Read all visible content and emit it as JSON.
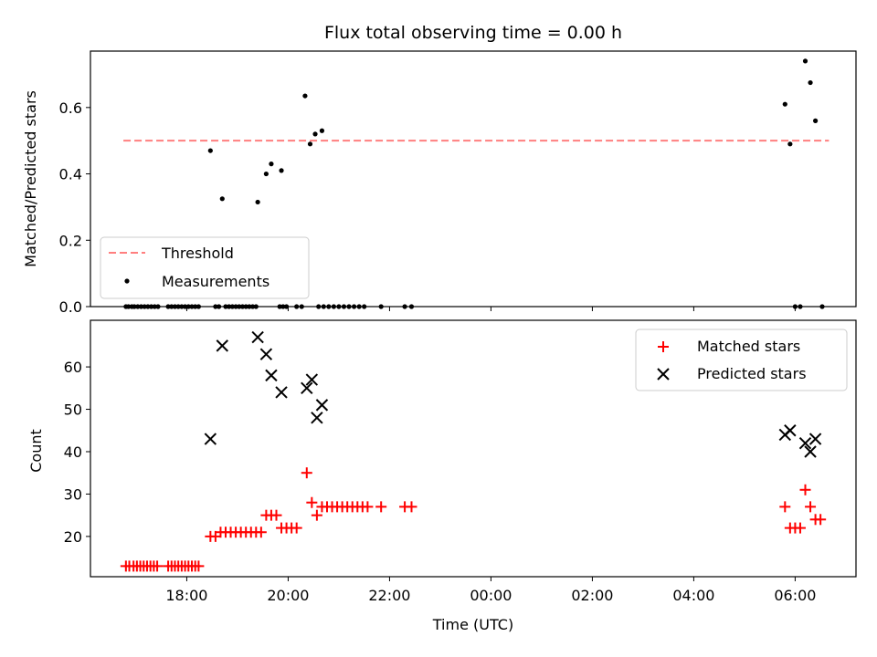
{
  "figure": {
    "title": "Flux total observing time = 0.00 h"
  },
  "chart_data": [
    {
      "type": "scatter",
      "title": "Flux total observing time = 0.00 h",
      "xlabel": "",
      "ylabel": "Matched/Predicted stars",
      "xlim": [
        "16:06",
        "07:12"
      ],
      "ylim": [
        0,
        0.77
      ],
      "yticks": [
        "0.0",
        "0.2",
        "0.4",
        "0.6"
      ],
      "legend_position": "lower-left",
      "threshold": {
        "name": "Threshold",
        "value": 0.5,
        "x_start": "16:45",
        "x_end": "06:40",
        "color": "#ff7f7f"
      },
      "series": [
        {
          "name": "Measurements",
          "color": "#000000",
          "points": [
            [
              "16:48",
              0
            ],
            [
              "16:51",
              0
            ],
            [
              "16:55",
              0
            ],
            [
              "16:58",
              0
            ],
            [
              "17:02",
              0
            ],
            [
              "17:06",
              0
            ],
            [
              "17:10",
              0
            ],
            [
              "17:14",
              0
            ],
            [
              "17:18",
              0
            ],
            [
              "17:22",
              0
            ],
            [
              "17:26",
              0
            ],
            [
              "17:38",
              0
            ],
            [
              "17:42",
              0
            ],
            [
              "17:46",
              0
            ],
            [
              "17:50",
              0
            ],
            [
              "17:54",
              0
            ],
            [
              "17:58",
              0
            ],
            [
              "18:02",
              0
            ],
            [
              "18:06",
              0
            ],
            [
              "18:10",
              0
            ],
            [
              "18:14",
              0
            ],
            [
              "18:28",
              0.47
            ],
            [
              "18:34",
              0
            ],
            [
              "18:38",
              0
            ],
            [
              "18:42",
              0.325
            ],
            [
              "18:46",
              0
            ],
            [
              "18:50",
              0
            ],
            [
              "18:54",
              0
            ],
            [
              "18:58",
              0
            ],
            [
              "19:02",
              0
            ],
            [
              "19:06",
              0
            ],
            [
              "19:10",
              0
            ],
            [
              "19:14",
              0
            ],
            [
              "19:18",
              0
            ],
            [
              "19:22",
              0
            ],
            [
              "19:24",
              0.315
            ],
            [
              "19:34",
              0.4
            ],
            [
              "19:40",
              0.43
            ],
            [
              "19:50",
              0
            ],
            [
              "19:54",
              0
            ],
            [
              "19:58",
              0
            ],
            [
              "19:52",
              0.41
            ],
            [
              "20:10",
              0
            ],
            [
              "20:16",
              0
            ],
            [
              "20:20",
              0.635
            ],
            [
              "20:26",
              0.49
            ],
            [
              "20:32",
              0.52
            ],
            [
              "20:40",
              0.53
            ],
            [
              "20:36",
              0
            ],
            [
              "20:42",
              0
            ],
            [
              "20:48",
              0
            ],
            [
              "20:54",
              0
            ],
            [
              "21:00",
              0
            ],
            [
              "21:06",
              0
            ],
            [
              "21:12",
              0
            ],
            [
              "21:18",
              0
            ],
            [
              "21:24",
              0
            ],
            [
              "21:30",
              0
            ],
            [
              "21:50",
              0
            ],
            [
              "22:18",
              0
            ],
            [
              "22:26",
              0
            ],
            [
              "05:48",
              0.61
            ],
            [
              "05:54",
              0.49
            ],
            [
              "06:00",
              0
            ],
            [
              "06:06",
              0
            ],
            [
              "06:12",
              0.74
            ],
            [
              "06:18",
              0.675
            ],
            [
              "06:24",
              0.56
            ],
            [
              "06:32",
              0
            ]
          ]
        }
      ]
    },
    {
      "type": "scatter",
      "xlabel": "Time (UTC)",
      "ylabel": "Count",
      "xlim": [
        "16:06",
        "07:12"
      ],
      "xticks": [
        "18:00",
        "20:00",
        "22:00",
        "00:00",
        "02:00",
        "04:00",
        "06:00"
      ],
      "ylim": [
        10.5,
        71
      ],
      "yticks": [
        "20",
        "30",
        "40",
        "50",
        "60"
      ],
      "legend_position": "upper-right",
      "series": [
        {
          "name": "Matched stars",
          "marker": "plus",
          "color": "#ff0000",
          "points": [
            [
              "16:48",
              13
            ],
            [
              "16:52",
              13
            ],
            [
              "16:57",
              13
            ],
            [
              "17:01",
              13
            ],
            [
              "17:05",
              13
            ],
            [
              "17:09",
              13
            ],
            [
              "17:13",
              13
            ],
            [
              "17:17",
              13
            ],
            [
              "17:21",
              13
            ],
            [
              "17:25",
              13
            ],
            [
              "17:38",
              13
            ],
            [
              "17:42",
              13
            ],
            [
              "17:46",
              13
            ],
            [
              "17:50",
              13
            ],
            [
              "17:54",
              13
            ],
            [
              "17:58",
              13
            ],
            [
              "18:02",
              13
            ],
            [
              "18:06",
              13
            ],
            [
              "18:10",
              13
            ],
            [
              "18:14",
              13
            ],
            [
              "18:28",
              20
            ],
            [
              "18:34",
              20
            ],
            [
              "18:40",
              21
            ],
            [
              "18:46",
              21
            ],
            [
              "18:52",
              21
            ],
            [
              "18:58",
              21
            ],
            [
              "19:04",
              21
            ],
            [
              "19:10",
              21
            ],
            [
              "19:16",
              21
            ],
            [
              "19:22",
              21
            ],
            [
              "19:28",
              21
            ],
            [
              "19:34",
              25
            ],
            [
              "19:40",
              25
            ],
            [
              "19:46",
              25
            ],
            [
              "19:52",
              22
            ],
            [
              "19:58",
              22
            ],
            [
              "20:04",
              22
            ],
            [
              "20:10",
              22
            ],
            [
              "20:22",
              35
            ],
            [
              "20:28",
              28
            ],
            [
              "20:34",
              25
            ],
            [
              "20:40",
              27
            ],
            [
              "20:46",
              27
            ],
            [
              "20:52",
              27
            ],
            [
              "20:58",
              27
            ],
            [
              "21:04",
              27
            ],
            [
              "21:10",
              27
            ],
            [
              "21:16",
              27
            ],
            [
              "21:22",
              27
            ],
            [
              "21:28",
              27
            ],
            [
              "21:34",
              27
            ],
            [
              "21:50",
              27
            ],
            [
              "22:18",
              27
            ],
            [
              "22:26",
              27
            ],
            [
              "05:48",
              27
            ],
            [
              "05:54",
              22
            ],
            [
              "06:00",
              22
            ],
            [
              "06:06",
              22
            ],
            [
              "06:12",
              31
            ],
            [
              "06:18",
              27
            ],
            [
              "06:24",
              24
            ],
            [
              "06:30",
              24
            ]
          ]
        },
        {
          "name": "Predicted stars",
          "marker": "x",
          "color": "#000000",
          "points": [
            [
              "18:28",
              43
            ],
            [
              "18:42",
              65
            ],
            [
              "19:24",
              67
            ],
            [
              "19:34",
              63
            ],
            [
              "19:40",
              58
            ],
            [
              "19:52",
              54
            ],
            [
              "20:22",
              55
            ],
            [
              "20:28",
              57
            ],
            [
              "20:34",
              48
            ],
            [
              "20:40",
              51
            ],
            [
              "05:48",
              44
            ],
            [
              "05:54",
              45
            ],
            [
              "06:12",
              42
            ],
            [
              "06:18",
              40
            ],
            [
              "06:24",
              43
            ]
          ]
        }
      ]
    }
  ]
}
